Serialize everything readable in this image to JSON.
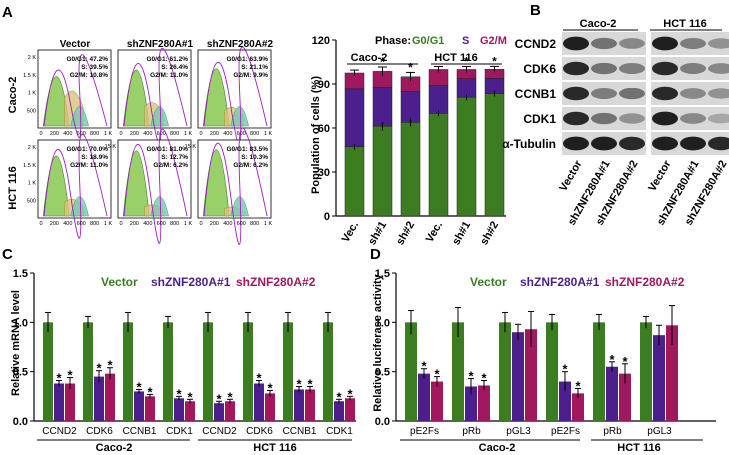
{
  "colors": {
    "green": "#3c7d22",
    "purple": "#4b1f8c",
    "magenta": "#a0185e",
    "black": "#000000"
  },
  "panel_labels": [
    "A",
    "B",
    "C",
    "D"
  ],
  "flow": {
    "col_headers": [
      "Vector",
      "shZNF280A#1",
      "shZNF280A#2"
    ],
    "row_labels": [
      "Caco-2",
      "HCT 116"
    ],
    "x_ticks": [
      "0",
      "200",
      "400",
      "600",
      "800",
      "1 K"
    ],
    "cells": [
      {
        "ymax": "2 K",
        "ytick_vals": [
          "500",
          "1 K",
          "1.5 K",
          "2 K"
        ],
        "g": "G0/G1: 47.2%",
        "s": "S: 39.5%",
        "m": "G2/M: 10.8%"
      },
      {
        "ymax": "",
        "ytick_vals": [],
        "g": "G0/G1: 61.2%",
        "s": "S: 26.4%",
        "m": "G2/M: 11.0%"
      },
      {
        "ymax": "",
        "ytick_vals": [],
        "g": "G0/G1: 63.9%",
        "s": "S: 21.1%",
        "m": "G2/M: 9.9%"
      },
      {
        "ymax": "",
        "ytick_vals": [
          "500",
          "1 K",
          "1.5 K",
          "2 K"
        ],
        "g": "G0/G1: 70.0%",
        "s": "S: 18.9%",
        "m": "G2/M: 11.0%"
      },
      {
        "ymax": "15 K",
        "ytick_vals": [],
        "g": "G0/G1: 81.0%",
        "s": "S: 12.7%",
        "m": "G2/M: 6.2%"
      },
      {
        "ymax": "15 K",
        "ytick_vals": [],
        "g": "G0/G1: 83.5%",
        "s": "S: 10.3%",
        "m": "G2/M: 6.2%"
      }
    ]
  },
  "blot": {
    "cell_lines": [
      "Caco-2",
      "HCT 116"
    ],
    "proteins": [
      "CCND2",
      "CDK6",
      "CCNB1",
      "CDK1",
      "α-Tubulin"
    ],
    "lanes": [
      "Vector",
      "shZNF280A#1",
      "shZNF280A#2",
      "Vector",
      "shZNF280A#1",
      "shZNF280A#2"
    ],
    "intensity": [
      [
        0.95,
        0.55,
        0.45,
        0.95,
        0.5,
        0.4
      ],
      [
        0.9,
        0.55,
        0.5,
        0.9,
        0.5,
        0.45
      ],
      [
        0.9,
        0.5,
        0.55,
        0.9,
        0.45,
        0.4
      ],
      [
        0.9,
        0.55,
        0.4,
        0.95,
        0.45,
        0.3
      ],
      [
        0.95,
        0.95,
        0.9,
        0.95,
        0.95,
        0.9
      ]
    ]
  },
  "chart_data": [
    {
      "panel": "A",
      "type": "bar",
      "title": "Phase: G0/G1  S  G2/M",
      "phase_labels": [
        "Phase:",
        "G0/G1",
        "S",
        "G2/M"
      ],
      "categories": [
        "Vec.",
        "sh#1",
        "sh#2",
        "Vec.",
        "sh#1",
        "sh#2"
      ],
      "groups": [
        "Caco-2",
        "HCT 116"
      ],
      "ylabel": "Population of cells (%)",
      "ylim": [
        0,
        120
      ],
      "yticks": [
        0,
        30,
        60,
        90,
        120
      ],
      "stacked": true,
      "series": [
        {
          "name": "G0/G1",
          "values": [
            47.2,
            61.2,
            63.9,
            70.0,
            81.0,
            83.5
          ]
        },
        {
          "name": "S",
          "values": [
            39.5,
            26.4,
            21.1,
            18.9,
            12.7,
            10.3
          ]
        },
        {
          "name": "G2/M",
          "values": [
            10.8,
            11.0,
            9.9,
            11.0,
            6.2,
            6.2
          ]
        }
      ],
      "errors": [
        2,
        3,
        3,
        2,
        2,
        2
      ],
      "stars": [
        "",
        "*",
        "*",
        "",
        "*",
        "*"
      ]
    },
    {
      "panel": "C",
      "type": "bar",
      "legend": [
        "Vector",
        "shZNF280A#1",
        "shZNF280A#2"
      ],
      "categories": [
        "CCND2",
        "CDK6",
        "CCNB1",
        "CDK1",
        "CCND2",
        "CDK6",
        "CCNB1",
        "CDK1"
      ],
      "groups": [
        "Caco-2",
        "HCT 116"
      ],
      "ylabel": "Relative mRNA level",
      "ylim": [
        0,
        1.5
      ],
      "yticks": [
        "0.0",
        "0.5",
        "1.0",
        "1.5"
      ],
      "series": [
        {
          "name": "Vector",
          "values": [
            1,
            1,
            1,
            1,
            1,
            1,
            1,
            1
          ],
          "err": [
            0.1,
            0.06,
            0.1,
            0.06,
            0.1,
            0.1,
            0.1,
            0.1
          ]
        },
        {
          "name": "shZNF280A#1",
          "values": [
            0.38,
            0.45,
            0.3,
            0.23,
            0.18,
            0.38,
            0.32,
            0.2
          ],
          "err": [
            0.03,
            0.06,
            0.02,
            0.02,
            0.02,
            0.03,
            0.03,
            0.02
          ]
        },
        {
          "name": "shZNF280A#2",
          "values": [
            0.38,
            0.48,
            0.25,
            0.2,
            0.2,
            0.28,
            0.32,
            0.23
          ],
          "err": [
            0.06,
            0.06,
            0.02,
            0.02,
            0.02,
            0.03,
            0.03,
            0.02
          ]
        }
      ],
      "star": "*"
    },
    {
      "panel": "D",
      "type": "bar",
      "legend": [
        "Vector",
        "shZNF280A#1",
        "shZNF280A#2"
      ],
      "categories": [
        "pE2Fs",
        "pRb",
        "pGL3",
        "pE2Fs",
        "pRb",
        "pGL3"
      ],
      "groups": [
        "Caco-2",
        "HCT 116"
      ],
      "ylabel": "Relative luciferase activity",
      "ylim": [
        0,
        1.5
      ],
      "yticks": [
        "0.0",
        "0.5",
        "1.0",
        "1.5"
      ],
      "series": [
        {
          "name": "Vector",
          "values": [
            1,
            1,
            1,
            1,
            1,
            1
          ],
          "err": [
            0.12,
            0.15,
            0.1,
            0.08,
            0.08,
            0.06
          ]
        },
        {
          "name": "shZNF280A#1",
          "values": [
            0.48,
            0.35,
            0.9,
            0.4,
            0.55,
            0.87
          ],
          "err": [
            0.05,
            0.08,
            0.08,
            0.1,
            0.05,
            0.1
          ]
        },
        {
          "name": "shZNF280A#2",
          "values": [
            0.4,
            0.36,
            0.93,
            0.28,
            0.48,
            0.97
          ],
          "err": [
            0.05,
            0.05,
            0.18,
            0.05,
            0.1,
            0.2
          ]
        }
      ],
      "stars": [
        [
          "",
          "*",
          "*"
        ],
        [
          "",
          "*",
          "*"
        ],
        [
          "",
          "",
          ""
        ],
        [
          "",
          "*",
          "*"
        ],
        [
          "",
          "*",
          "*"
        ],
        [
          "",
          "",
          ""
        ]
      ]
    }
  ]
}
